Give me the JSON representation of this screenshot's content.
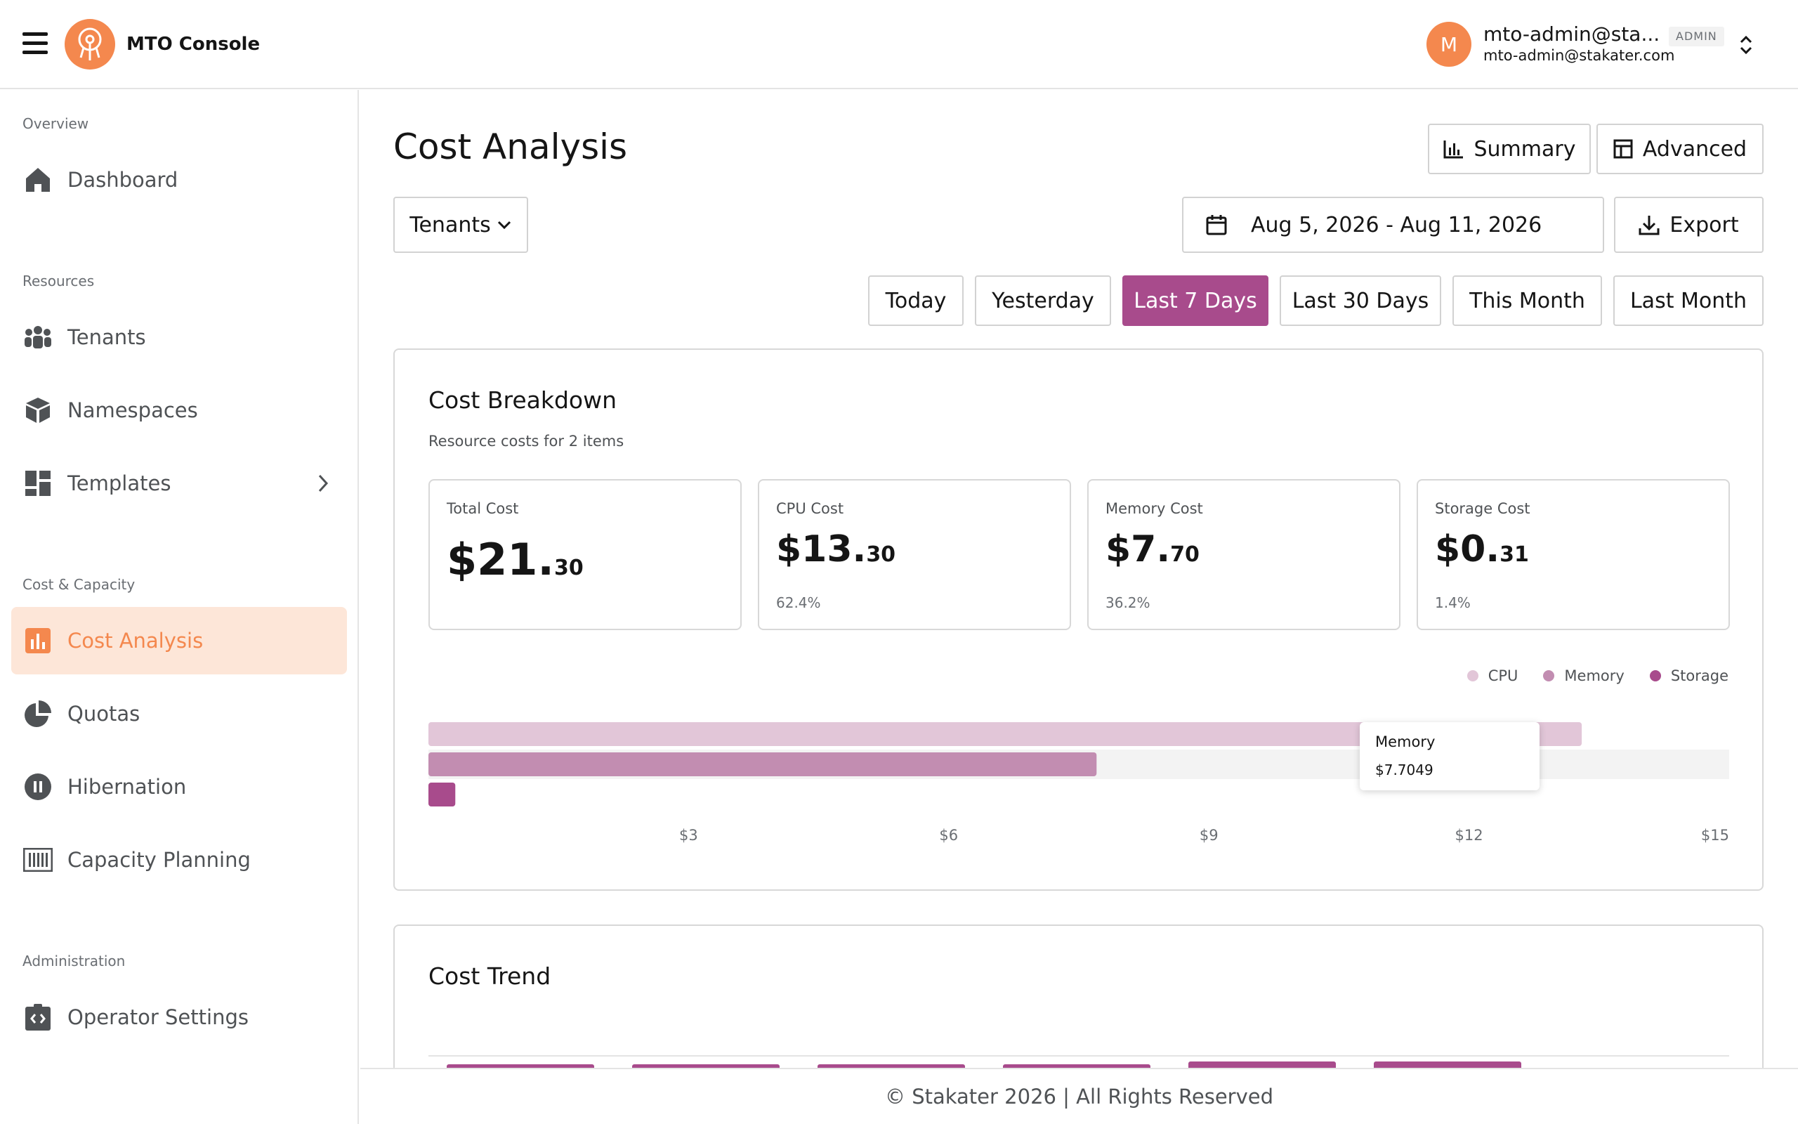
{
  "header": {
    "app_title": "MTO Console",
    "avatar_letter": "M",
    "user_name": "mto-admin@sta...",
    "user_email": "mto-admin@stakater.com",
    "role_badge": "ADMIN",
    "icons": {
      "menu": "hamburger-icon",
      "logo": "mto-logo-icon",
      "user_switch": "chevron-updown-icon"
    }
  },
  "sidebar": {
    "sections": [
      {
        "label": "Overview",
        "items": [
          {
            "label": "Dashboard",
            "icon": "home-icon"
          }
        ]
      },
      {
        "label": "Resources",
        "items": [
          {
            "label": "Tenants",
            "icon": "users-icon"
          },
          {
            "label": "Namespaces",
            "icon": "cube-icon"
          },
          {
            "label": "Templates",
            "icon": "dashboard-grid-icon",
            "expandable": true
          }
        ]
      },
      {
        "label": "Cost & Capacity",
        "items": [
          {
            "label": "Cost Analysis",
            "icon": "chart-bar-icon",
            "active": true
          },
          {
            "label": "Quotas",
            "icon": "pie-chart-icon"
          },
          {
            "label": "Hibernation",
            "icon": "pause-circle-icon"
          },
          {
            "label": "Capacity Planning",
            "icon": "barcode-icon"
          }
        ]
      },
      {
        "label": "Administration",
        "items": [
          {
            "label": "Operator Settings",
            "icon": "code-settings-icon"
          }
        ]
      }
    ]
  },
  "main": {
    "title": "Cost Analysis",
    "view_buttons": [
      {
        "label": "Summary",
        "icon": "bar-chart-icon"
      },
      {
        "label": "Advanced",
        "icon": "table-icon"
      }
    ],
    "filter_dropdown": {
      "value": "Tenants"
    },
    "date_range": "Aug 5, 2026 - Aug 11, 2026",
    "export_label": "Export",
    "ranges": [
      {
        "label": "Today"
      },
      {
        "label": "Yesterday"
      },
      {
        "label": "Last 7 Days",
        "active": true
      },
      {
        "label": "Last 30 Days"
      },
      {
        "label": "This Month"
      },
      {
        "label": "Last Month"
      }
    ]
  },
  "breakdown": {
    "title": "Cost Breakdown",
    "subtitle": "Resource costs for 2 items",
    "stats": [
      {
        "label": "Total Cost",
        "whole": "$21.",
        "cents": "30",
        "pct": ""
      },
      {
        "label": "CPU Cost",
        "whole": "$13.",
        "cents": "30",
        "pct": "62.4%"
      },
      {
        "label": "Memory Cost",
        "whole": "$7.",
        "cents": "70",
        "pct": "36.2%"
      },
      {
        "label": "Storage Cost",
        "whole": "$0.",
        "cents": "31",
        "pct": "1.4%"
      }
    ],
    "tooltip": {
      "title": "Memory",
      "value": "$7.7049"
    }
  },
  "chart_data": {
    "type": "bar",
    "orientation": "horizontal",
    "categories": [
      "CPU",
      "Memory",
      "Storage"
    ],
    "values": [
      13.3,
      7.7049,
      0.31
    ],
    "colors": [
      "#e2c6d8",
      "#c28db1",
      "#a84b8c"
    ],
    "xlim": [
      0,
      15
    ],
    "x_ticks": [
      "$3",
      "$6",
      "$9",
      "$12",
      "$15"
    ],
    "legend": [
      "CPU",
      "Memory",
      "Storage"
    ],
    "legend_position": "top-right",
    "hovered_category": "Memory"
  },
  "trend": {
    "title": "Cost Trend",
    "bar_color": "#a84b8c",
    "bar_count": 6
  },
  "footer": {
    "text": "© Stakater 2026 | All Rights Reserved"
  },
  "theme": {
    "accent": "#f4884e",
    "active_tint": "#fde6d8",
    "primary": "#a84b8c"
  }
}
